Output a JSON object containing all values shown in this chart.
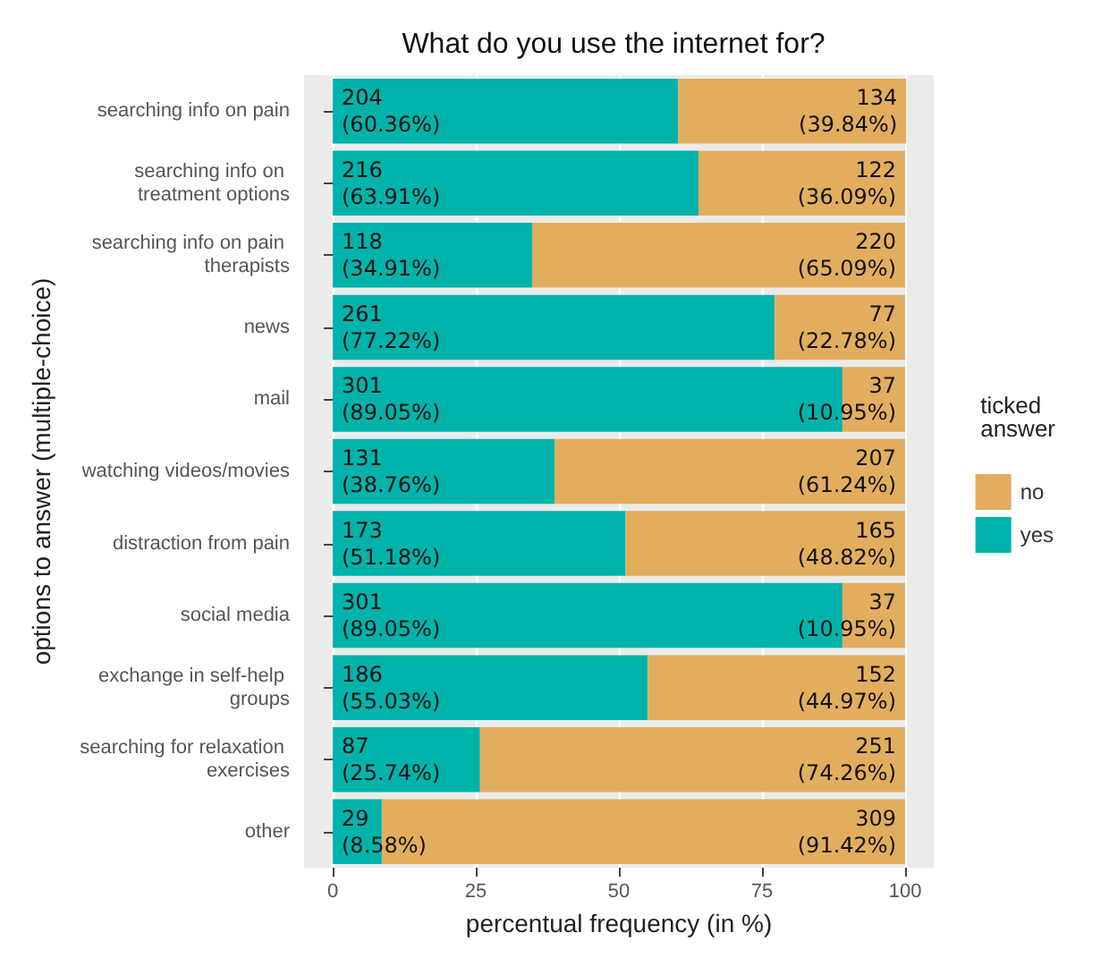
{
  "chart_data": {
    "type": "bar",
    "orientation": "horizontal",
    "stacked": true,
    "title": "What do you use the internet for?",
    "xlabel": "percentual frequency (in %)",
    "ylabel": "options to answer (multiple-choice)",
    "legend_title": "ticked answer",
    "legend": "right",
    "grid": "x",
    "categories": [
      "searching info on pain",
      "searching info on treatment options",
      "searching info on pain therapists",
      "news",
      "mail",
      "watching videos/movies",
      "distraction from pain",
      "social media",
      "exchange in self-help groups",
      "searching for relaxation exercises",
      "other"
    ],
    "series": [
      {
        "name": "yes",
        "color": "#00b3aa",
        "values": [
          60.36,
          63.91,
          34.91,
          77.22,
          89.05,
          38.76,
          51.18,
          89.05,
          55.03,
          25.74,
          8.58
        ],
        "value_labels": [
          "204\n(60.36%)",
          "216\n(63.91%)",
          "118\n(34.91%)",
          "261\n(77.22%)",
          "301\n(89.05%)",
          "131\n(38.76%)",
          "173\n(51.18%)",
          "301\n(89.05%)",
          "186\n(55.03%)",
          "87\n(25.74%)",
          "29\n(8.58%)"
        ]
      },
      {
        "name": "no",
        "color": "#e2ae5e",
        "values": [
          39.84,
          36.09,
          65.09,
          22.78,
          10.95,
          61.24,
          48.82,
          10.95,
          44.97,
          74.26,
          91.42
        ],
        "value_labels": [
          "134\n(39.84%)",
          "122\n(36.09%)",
          "220\n(65.09%)",
          "77\n(22.78%)",
          "37\n(10.95%)",
          "207\n(61.24%)",
          "165\n(48.82%)",
          "37\n(10.95%)",
          "152\n(44.97%)",
          "251\n(74.26%)",
          "309\n(91.42%)"
        ]
      }
    ],
    "xlim": [
      -5,
      105
    ],
    "xticks": [
      0,
      25,
      50,
      75,
      100
    ]
  }
}
